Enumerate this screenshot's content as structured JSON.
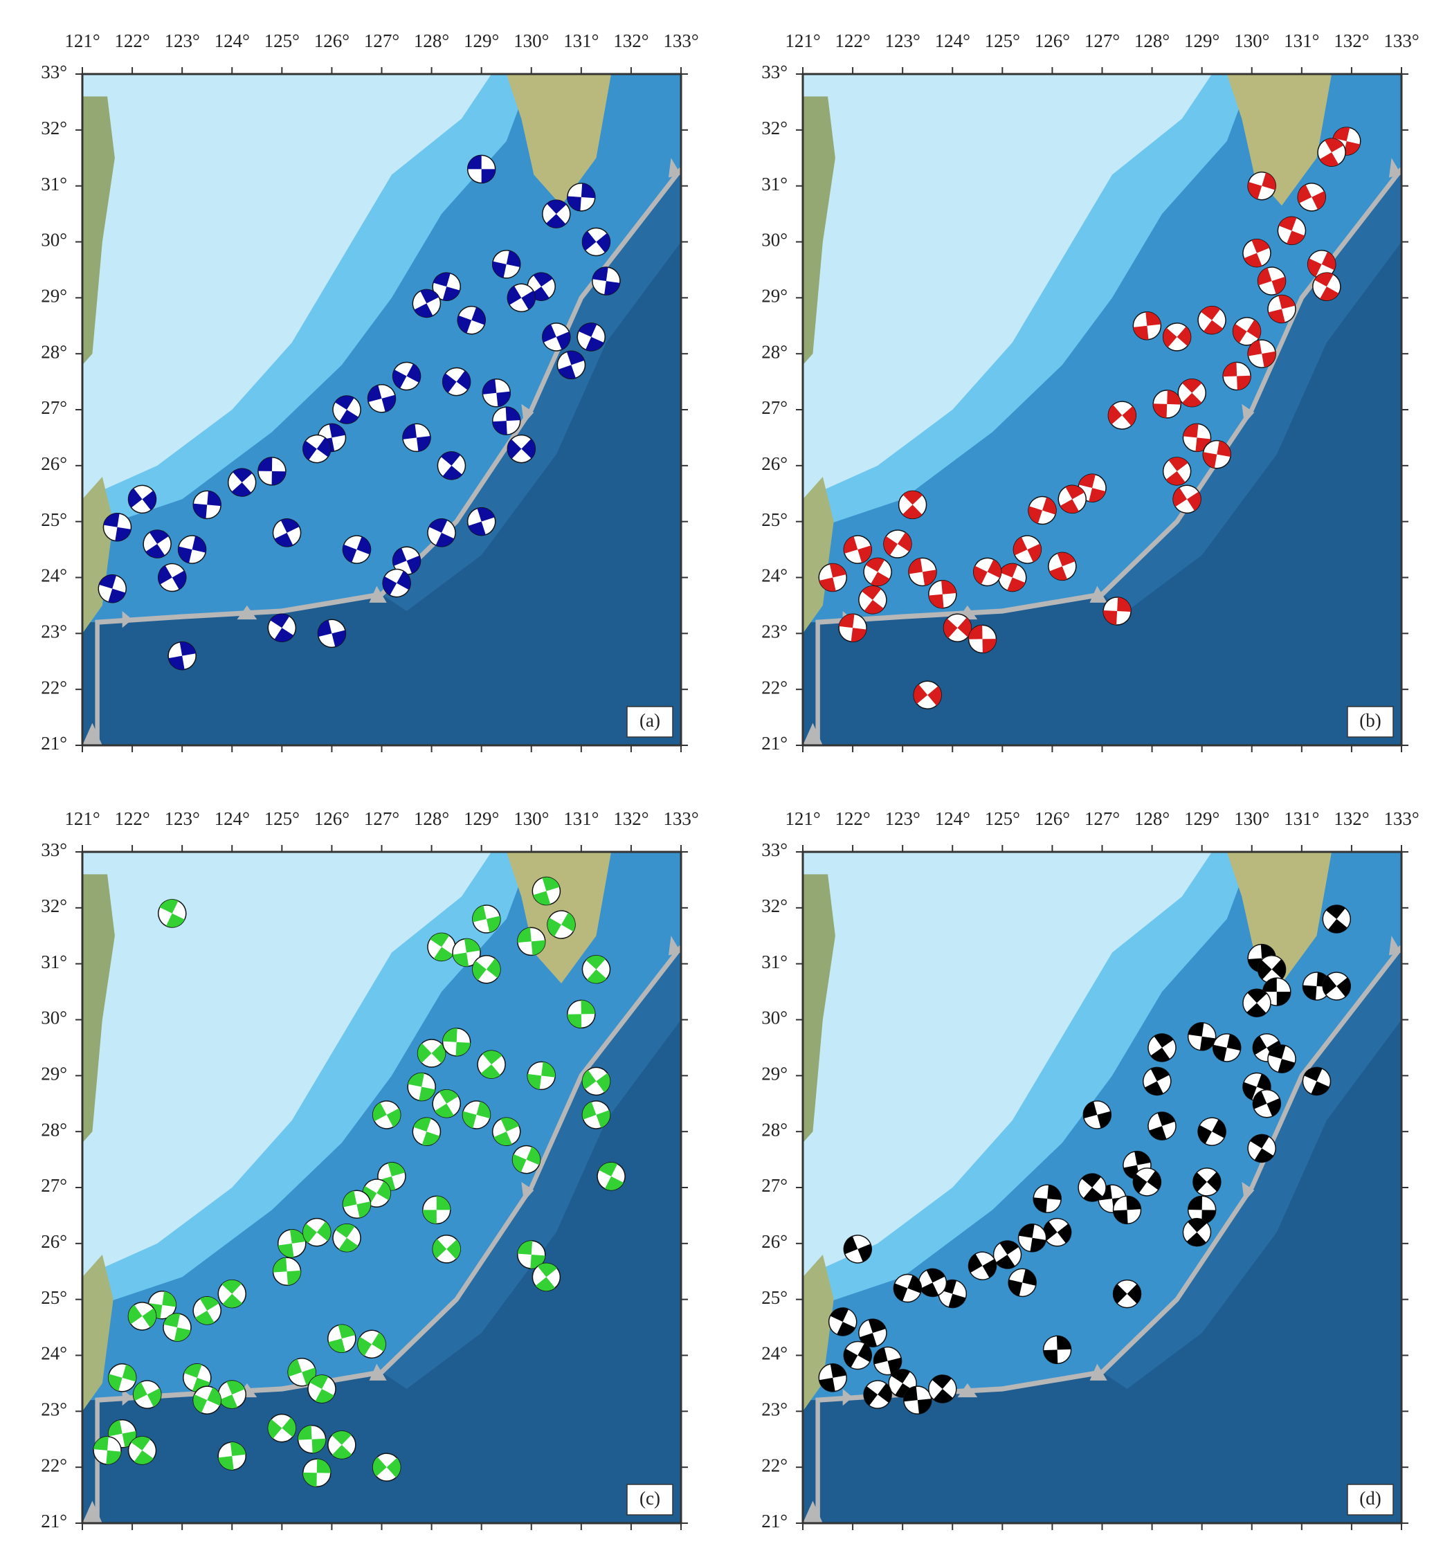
{
  "map": {
    "xlim": [
      121,
      133
    ],
    "ylim": [
      21,
      33
    ],
    "xticks": [
      {
        "value": 121,
        "label": "121°"
      },
      {
        "value": 122,
        "label": "122°"
      },
      {
        "value": 123,
        "label": "123°"
      },
      {
        "value": 124,
        "label": "124°"
      },
      {
        "value": 125,
        "label": "125°"
      },
      {
        "value": 126,
        "label": "126°"
      },
      {
        "value": 127,
        "label": "127°"
      },
      {
        "value": 128,
        "label": "128°"
      },
      {
        "value": 129,
        "label": "129°"
      },
      {
        "value": 130,
        "label": "130°"
      },
      {
        "value": 131,
        "label": "131°"
      },
      {
        "value": 132,
        "label": "132°"
      },
      {
        "value": 133,
        "label": "133°"
      }
    ],
    "yticks": [
      {
        "value": 21,
        "label": "21°"
      },
      {
        "value": 22,
        "label": "22°"
      },
      {
        "value": 23,
        "label": "23°"
      },
      {
        "value": 24,
        "label": "24°"
      },
      {
        "value": 25,
        "label": "25°"
      },
      {
        "value": 26,
        "label": "26°"
      },
      {
        "value": 27,
        "label": "27°"
      },
      {
        "value": 28,
        "label": "28°"
      },
      {
        "value": 29,
        "label": "29°"
      },
      {
        "value": 30,
        "label": "30°"
      },
      {
        "value": 31,
        "label": "31°"
      },
      {
        "value": 32,
        "label": "32°"
      },
      {
        "value": 33,
        "label": "33°"
      }
    ]
  },
  "panels": [
    {
      "label": "(a)",
      "color": "#0b0b9e",
      "events": [
        [
          129,
          31.3
        ],
        [
          130.5,
          30.5
        ],
        [
          131,
          30.8
        ],
        [
          131.3,
          30
        ],
        [
          131.5,
          29.3
        ],
        [
          130.2,
          29.2
        ],
        [
          129.5,
          29.6
        ],
        [
          129.8,
          29
        ],
        [
          128.3,
          29.2
        ],
        [
          127.9,
          28.9
        ],
        [
          128.8,
          28.6
        ],
        [
          130.5,
          28.3
        ],
        [
          131.2,
          28.3
        ],
        [
          130.8,
          27.8
        ],
        [
          127.5,
          27.6
        ],
        [
          127,
          27.2
        ],
        [
          126.3,
          27
        ],
        [
          126,
          26.5
        ],
        [
          125.7,
          26.3
        ],
        [
          127.7,
          26.5
        ],
        [
          128.4,
          26
        ],
        [
          129.5,
          26.8
        ],
        [
          129.8,
          26.3
        ],
        [
          124.8,
          25.9
        ],
        [
          124.2,
          25.7
        ],
        [
          123.5,
          25.3
        ],
        [
          122.2,
          25.4
        ],
        [
          121.7,
          24.9
        ],
        [
          122.5,
          24.6
        ],
        [
          123.2,
          24.5
        ],
        [
          122.8,
          24
        ],
        [
          121.6,
          23.8
        ],
        [
          125.1,
          24.8
        ],
        [
          126.5,
          24.5
        ],
        [
          127.5,
          24.3
        ],
        [
          128.2,
          24.8
        ],
        [
          129,
          25
        ],
        [
          127.3,
          23.9
        ],
        [
          126,
          23
        ],
        [
          125,
          23.1
        ],
        [
          123,
          22.6
        ],
        [
          128.5,
          27.5
        ],
        [
          129.3,
          27.3
        ]
      ]
    },
    {
      "label": "(b)",
      "color": "#d81c1c",
      "events": [
        [
          131.9,
          31.8
        ],
        [
          131.6,
          31.6
        ],
        [
          130.2,
          31
        ],
        [
          131.2,
          30.8
        ],
        [
          130.8,
          30.2
        ],
        [
          130.1,
          29.8
        ],
        [
          131.4,
          29.6
        ],
        [
          130.4,
          29.3
        ],
        [
          131.5,
          29.2
        ],
        [
          130.6,
          28.8
        ],
        [
          129.9,
          28.4
        ],
        [
          130.2,
          28
        ],
        [
          129.2,
          28.6
        ],
        [
          127.9,
          28.5
        ],
        [
          128.5,
          28.3
        ],
        [
          129.7,
          27.6
        ],
        [
          128.8,
          27.3
        ],
        [
          128.3,
          27.1
        ],
        [
          127.4,
          26.9
        ],
        [
          128.9,
          26.5
        ],
        [
          128.5,
          25.9
        ],
        [
          129.3,
          26.2
        ],
        [
          128.7,
          25.4
        ],
        [
          126.8,
          25.6
        ],
        [
          126.4,
          25.4
        ],
        [
          125.8,
          25.2
        ],
        [
          125.5,
          24.5
        ],
        [
          125.2,
          24
        ],
        [
          126.2,
          24.2
        ],
        [
          124.7,
          24.1
        ],
        [
          122.1,
          24.5
        ],
        [
          122.5,
          24.1
        ],
        [
          121.6,
          24
        ],
        [
          122.9,
          24.6
        ],
        [
          123.4,
          24.1
        ],
        [
          122.4,
          23.6
        ],
        [
          123.8,
          23.7
        ],
        [
          124.1,
          23.1
        ],
        [
          124.6,
          22.9
        ],
        [
          123.2,
          25.3
        ],
        [
          127.3,
          23.4
        ],
        [
          123.5,
          21.9
        ],
        [
          122,
          23.1
        ]
      ]
    },
    {
      "label": "(c)",
      "color": "#33d133",
      "events": [
        [
          122.8,
          31.9
        ],
        [
          130.3,
          32.3
        ],
        [
          130.6,
          31.7
        ],
        [
          129.1,
          31.8
        ],
        [
          128.2,
          31.3
        ],
        [
          128.7,
          31.2
        ],
        [
          129.1,
          30.9
        ],
        [
          130,
          31.4
        ],
        [
          131.3,
          30.9
        ],
        [
          131,
          30.1
        ],
        [
          128,
          29.4
        ],
        [
          128.5,
          29.6
        ],
        [
          129.2,
          29.2
        ],
        [
          130.2,
          29
        ],
        [
          131.3,
          28.9
        ],
        [
          127.8,
          28.8
        ],
        [
          128.3,
          28.5
        ],
        [
          128.9,
          28.3
        ],
        [
          127.1,
          28.3
        ],
        [
          127.9,
          28
        ],
        [
          129.5,
          28
        ],
        [
          129.9,
          27.5
        ],
        [
          131.3,
          28.3
        ],
        [
          131.6,
          27.2
        ],
        [
          127.2,
          27.2
        ],
        [
          126.9,
          26.9
        ],
        [
          126.5,
          26.7
        ],
        [
          126.3,
          26.1
        ],
        [
          125.2,
          26
        ],
        [
          125.7,
          26.2
        ],
        [
          125.1,
          25.5
        ],
        [
          124,
          25.1
        ],
        [
          128.1,
          26.6
        ],
        [
          128.3,
          25.9
        ],
        [
          130,
          25.8
        ],
        [
          130.3,
          25.4
        ],
        [
          122.6,
          24.9
        ],
        [
          122.2,
          24.7
        ],
        [
          122.9,
          24.5
        ],
        [
          123.5,
          24.8
        ],
        [
          121.8,
          23.6
        ],
        [
          122.3,
          23.3
        ],
        [
          123.3,
          23.6
        ],
        [
          124,
          23.3
        ],
        [
          123.5,
          23.2
        ],
        [
          125.4,
          23.7
        ],
        [
          125.8,
          23.4
        ],
        [
          126.2,
          24.3
        ],
        [
          126.8,
          24.2
        ],
        [
          121.8,
          22.6
        ],
        [
          122.2,
          22.3
        ],
        [
          124,
          22.2
        ],
        [
          125,
          22.7
        ],
        [
          125.6,
          22.5
        ],
        [
          126.2,
          22.4
        ],
        [
          125.7,
          21.9
        ],
        [
          127.1,
          22
        ],
        [
          121.5,
          22.3
        ]
      ]
    },
    {
      "label": "(d)",
      "color": "#000000",
      "events": [
        [
          131.7,
          31.8
        ],
        [
          130.2,
          31.1
        ],
        [
          130.4,
          30.9
        ],
        [
          130.5,
          30.5
        ],
        [
          130.1,
          30.3
        ],
        [
          131.3,
          30.6
        ],
        [
          131.7,
          30.6
        ],
        [
          129,
          29.7
        ],
        [
          128.2,
          29.5
        ],
        [
          129.5,
          29.5
        ],
        [
          130.3,
          29.5
        ],
        [
          130.6,
          29.3
        ],
        [
          128.1,
          28.9
        ],
        [
          130.1,
          28.8
        ],
        [
          130.3,
          28.5
        ],
        [
          131.3,
          28.9
        ],
        [
          128.2,
          28.1
        ],
        [
          129.2,
          28
        ],
        [
          126.9,
          28.3
        ],
        [
          130.2,
          27.7
        ],
        [
          127.7,
          27.4
        ],
        [
          127.9,
          27.1
        ],
        [
          127.2,
          26.8
        ],
        [
          126.8,
          27
        ],
        [
          127.5,
          26.6
        ],
        [
          129.1,
          27.1
        ],
        [
          129,
          26.6
        ],
        [
          128.9,
          26.2
        ],
        [
          125.9,
          26.8
        ],
        [
          126.1,
          26.2
        ],
        [
          125.6,
          26.1
        ],
        [
          125.1,
          25.8
        ],
        [
          125.4,
          25.3
        ],
        [
          124.6,
          25.6
        ],
        [
          124,
          25.1
        ],
        [
          123.6,
          25.3
        ],
        [
          123.1,
          25.2
        ],
        [
          122.1,
          25.9
        ],
        [
          121.8,
          24.6
        ],
        [
          122.4,
          24.4
        ],
        [
          122.1,
          24
        ],
        [
          122.7,
          23.9
        ],
        [
          123,
          23.5
        ],
        [
          121.6,
          23.6
        ],
        [
          122.5,
          23.3
        ],
        [
          123.3,
          23.2
        ],
        [
          123.8,
          23.4
        ],
        [
          126.1,
          24.1
        ],
        [
          127.5,
          25.1
        ]
      ]
    }
  ]
}
